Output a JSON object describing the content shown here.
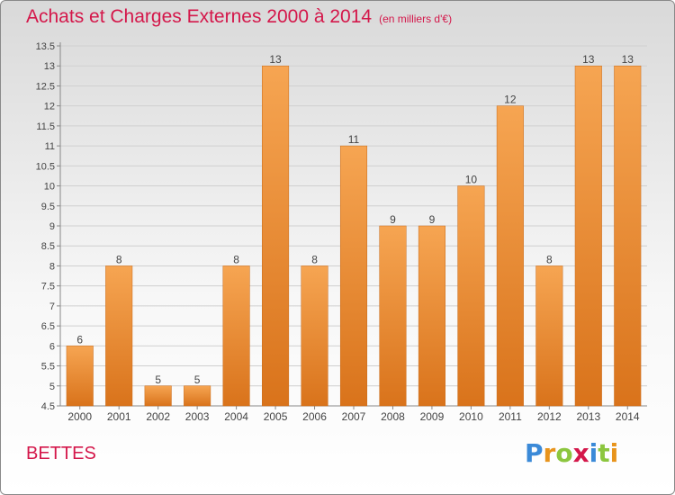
{
  "header": {
    "title": "Achats et Charges Externes 2000 à 2014",
    "unit": "(en milliers d'€)"
  },
  "footer": {
    "commune": "BETTES",
    "logo_text": "Proxiti"
  },
  "colors": {
    "title": "#d4174a",
    "bar_light": "#f6a552",
    "bar_dark": "#d9731b",
    "logo": [
      "#3b8ad8",
      "#e8941c",
      "#8cc63f",
      "#d4174a",
      "#3b8ad8",
      "#8cc63f",
      "#e8941c"
    ]
  },
  "chart_data": {
    "type": "bar",
    "categories": [
      "2000",
      "2001",
      "2002",
      "2003",
      "2004",
      "2005",
      "2006",
      "2007",
      "2008",
      "2009",
      "2010",
      "2011",
      "2012",
      "2013",
      "2014"
    ],
    "values": [
      6,
      8,
      5,
      5,
      8,
      13,
      8,
      11,
      9,
      9,
      10,
      12,
      8,
      13,
      13
    ],
    "ylim": [
      4.5,
      13.5
    ],
    "yticks": [
      "4.5",
      "5",
      "5.5",
      "6",
      "6.5",
      "7",
      "7.5",
      "8",
      "8.5",
      "9",
      "9.5",
      "10",
      "10.5",
      "11",
      "11.5",
      "12",
      "12.5",
      "13",
      "13.5"
    ],
    "grid": true,
    "data_labels": true
  }
}
